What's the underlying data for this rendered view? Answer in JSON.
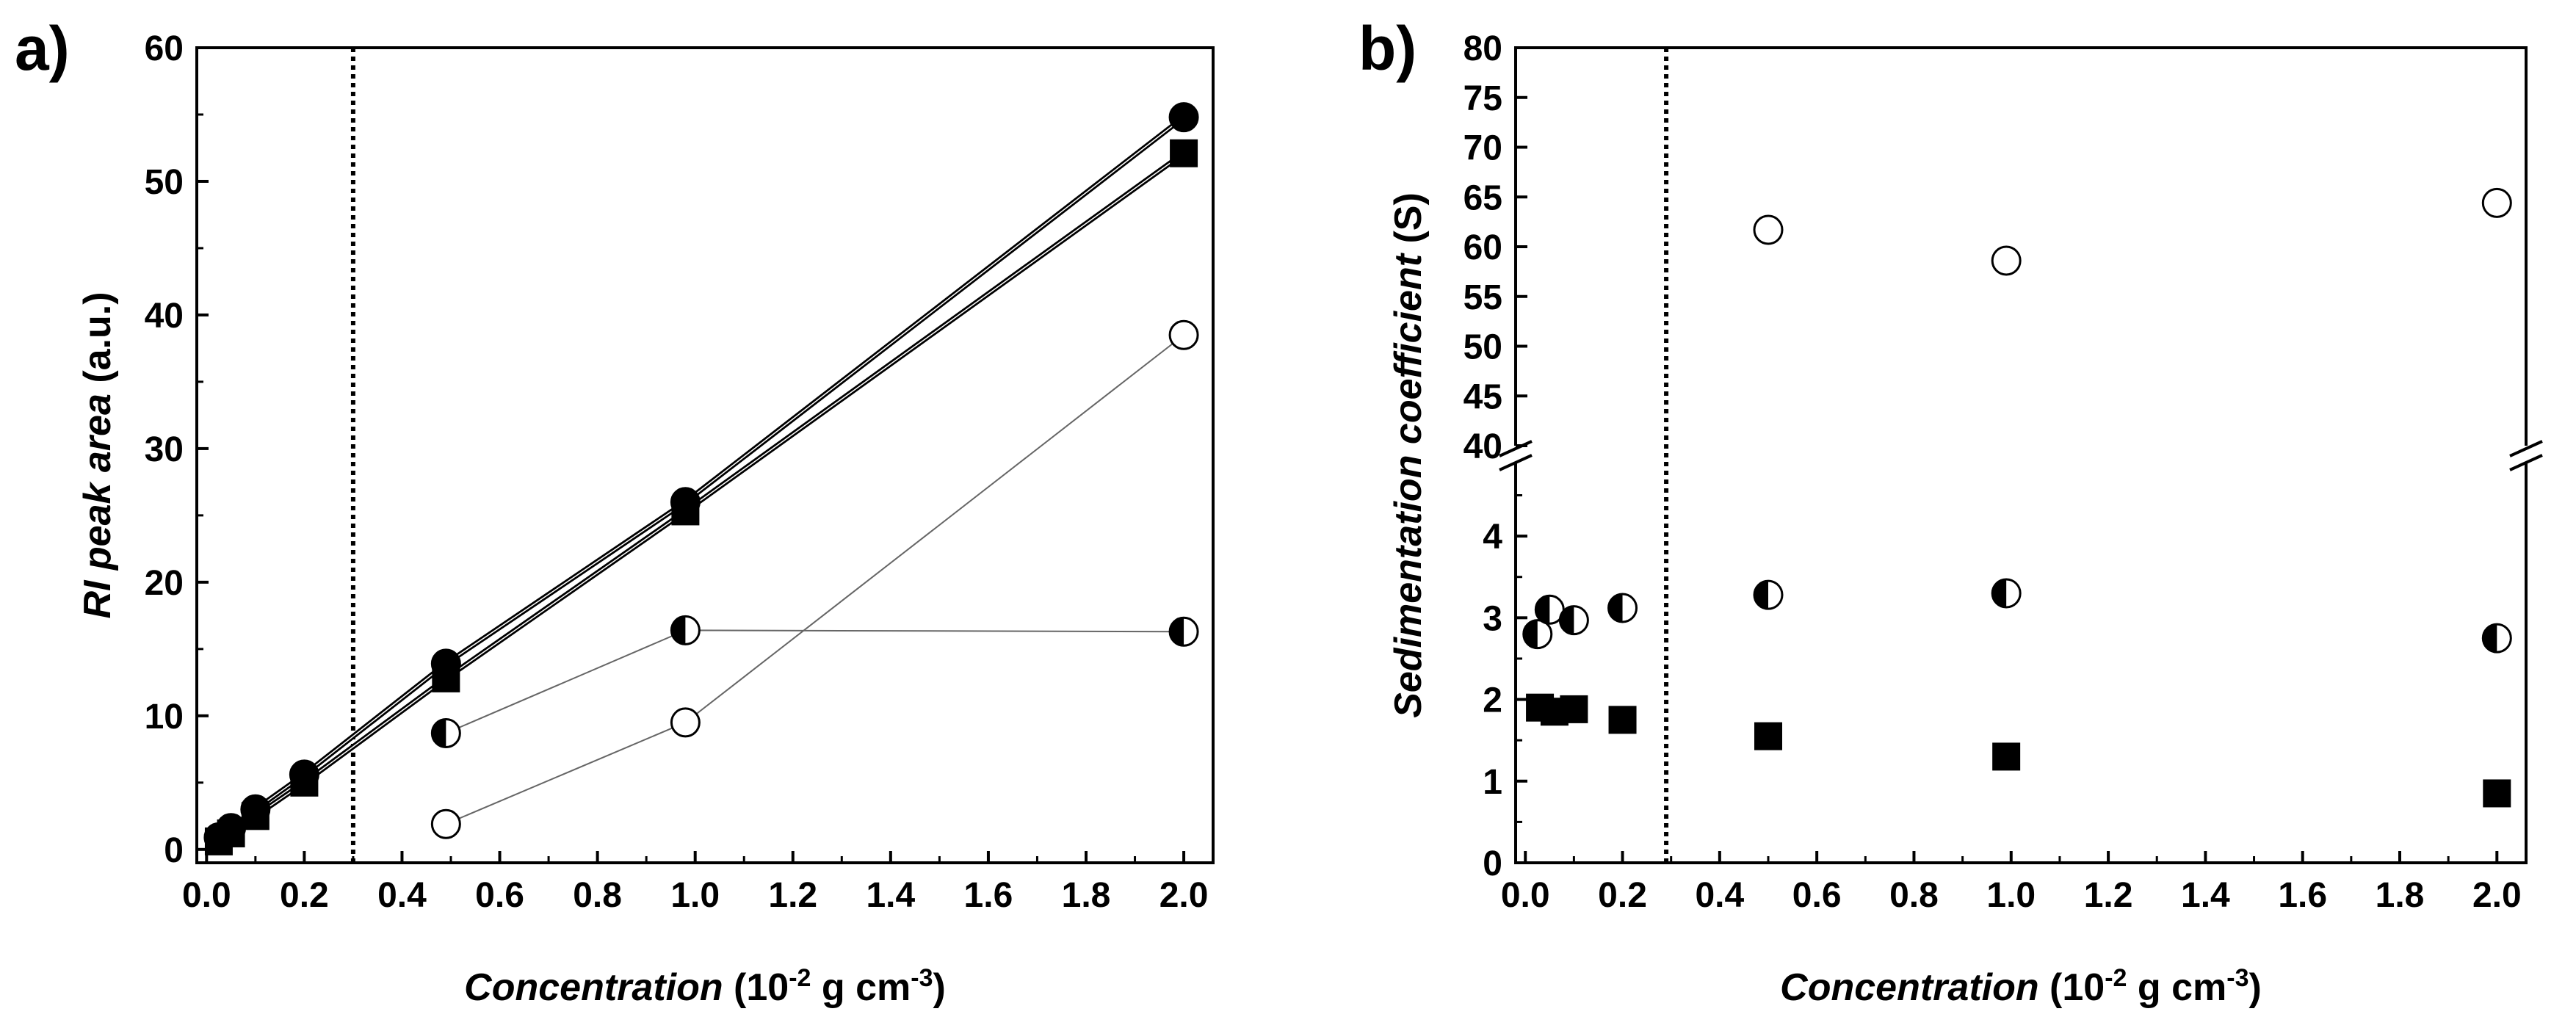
{
  "figure": {
    "panels": [
      "a)",
      "b)"
    ]
  },
  "chart_data": [
    {
      "id": "a",
      "panel_label": "a)",
      "type": "line",
      "xlabel": {
        "italic": "Concentration",
        "pre": "(10",
        "exp1": "-2",
        "mid": " g cm",
        "exp2": "-3",
        "post": ")"
      },
      "ylabel": {
        "italic": "RI peak area",
        "rest": " (a.u.)"
      },
      "xlim": [
        -0.02,
        2.06
      ],
      "ylim": [
        -1,
        60
      ],
      "xticks": [
        0.0,
        0.2,
        0.4,
        0.6,
        0.8,
        1.0,
        1.2,
        1.4,
        1.6,
        1.8,
        2.0
      ],
      "xtick_labels": [
        "0.0",
        "0.2",
        "0.4",
        "0.6",
        "0.8",
        "1.0",
        "1.2",
        "1.4",
        "1.6",
        "1.8",
        "2.0"
      ],
      "yticks": [
        0,
        10,
        20,
        30,
        40,
        50,
        60
      ],
      "ytick_labels": [
        "0",
        "10",
        "20",
        "30",
        "40",
        "50",
        "60"
      ],
      "vline_x": 0.3,
      "series": [
        {
          "name": "filled circles",
          "marker": "circle-filled",
          "line": "thick",
          "x": [
            0.025,
            0.05,
            0.1,
            0.2,
            0.49,
            0.98,
            2.0
          ],
          "y": [
            0.9,
            1.6,
            3.0,
            5.6,
            13.9,
            26.0,
            54.8
          ]
        },
        {
          "name": "filled squares",
          "marker": "square-filled",
          "line": "thick",
          "x": [
            0.025,
            0.05,
            0.1,
            0.2,
            0.49,
            0.98,
            2.0
          ],
          "y": [
            0.6,
            1.2,
            2.5,
            5.0,
            12.8,
            25.3,
            52.1
          ]
        },
        {
          "name": "half-filled circles",
          "marker": "circle-half",
          "line": "thin",
          "x": [
            0.49,
            0.98,
            2.0
          ],
          "y": [
            8.7,
            16.4,
            16.3
          ]
        },
        {
          "name": "open circles",
          "marker": "circle-open",
          "line": "thin",
          "x": [
            0.49,
            0.98,
            2.0
          ],
          "y": [
            1.9,
            9.5,
            38.5
          ]
        }
      ]
    },
    {
      "id": "b",
      "panel_label": "b)",
      "type": "scatter",
      "xlabel": {
        "italic": "Concentration",
        "pre": "(10",
        "exp1": "-2",
        "mid": " g cm",
        "exp2": "-3",
        "post": ")"
      },
      "ylabel": {
        "italic": "Sedimentation coefficient",
        "rest": " (S)"
      },
      "xlim": [
        -0.02,
        2.06
      ],
      "broken_y_axis": true,
      "ylim_lower": [
        0,
        4.9
      ],
      "ylim_upper": [
        40,
        80
      ],
      "xticks": [
        0.0,
        0.2,
        0.4,
        0.6,
        0.8,
        1.0,
        1.2,
        1.4,
        1.6,
        1.8,
        2.0
      ],
      "xtick_labels": [
        "0.0",
        "0.2",
        "0.4",
        "0.6",
        "0.8",
        "1.0",
        "1.2",
        "1.4",
        "1.6",
        "1.8",
        "2.0"
      ],
      "yticks_lower": [
        0,
        1,
        2,
        3,
        4
      ],
      "ytick_labels_lower": [
        "0",
        "1",
        "2",
        "3",
        "4"
      ],
      "yticks_upper": [
        40,
        45,
        50,
        55,
        60,
        65,
        70,
        75,
        80
      ],
      "ytick_labels_upper": [
        "40",
        "45",
        "50",
        "55",
        "60",
        "65",
        "70",
        "75",
        "80"
      ],
      "vline_x": 0.29,
      "series": [
        {
          "name": "filled squares",
          "marker": "square-filled",
          "x": [
            0.03,
            0.06,
            0.1,
            0.2,
            0.5,
            0.99,
            2.0
          ],
          "y": [
            1.9,
            1.85,
            1.88,
            1.75,
            1.55,
            1.3,
            0.85
          ]
        },
        {
          "name": "half-filled circles",
          "marker": "circle-half",
          "x": [
            0.025,
            0.05,
            0.1,
            0.2,
            0.5,
            0.99,
            2.0
          ],
          "y": [
            2.8,
            3.1,
            2.97,
            3.12,
            3.28,
            3.3,
            2.75
          ]
        },
        {
          "name": "open circles",
          "marker": "circle-open",
          "x": [
            0.5,
            0.99,
            2.0
          ],
          "y": [
            61.7,
            58.6,
            64.4
          ]
        }
      ]
    }
  ]
}
